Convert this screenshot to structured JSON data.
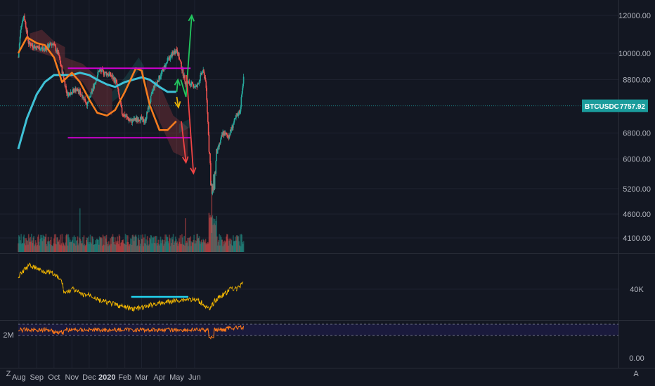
{
  "chart_data": {
    "type": "candlestick",
    "symbol": "BTCUSDC",
    "last_price": "7757.92",
    "price_axis_labels": [
      "12000.00",
      "10000.00",
      "8800.00",
      "6800.00",
      "6000.00",
      "5200.00",
      "4600.00",
      "4100.00"
    ],
    "price_axis_values": [
      12000,
      10000,
      8800,
      6800,
      6000,
      5200,
      4600,
      4100
    ],
    "price_scale": "log",
    "obv_axis_label": "40K",
    "oscillator_axis_labels": [
      "2M",
      "0.00"
    ],
    "time_axis_labels": [
      "Aug",
      "Sep",
      "Oct",
      "Nov",
      "Dec",
      "2020",
      "Feb",
      "Mar",
      "Apr",
      "May",
      "Jun"
    ],
    "time_axis_bold": [
      "2020"
    ],
    "corner_labels": [
      "Z",
      "A"
    ],
    "ma_fast_path": [
      [
        "2019-07-31",
        10000
      ],
      [
        "2019-08-15",
        10800
      ],
      [
        "2019-09-01",
        10500
      ],
      [
        "2019-09-15",
        10400
      ],
      [
        "2019-10-01",
        9800
      ],
      [
        "2019-10-15",
        8700
      ],
      [
        "2019-11-01",
        9100
      ],
      [
        "2019-11-15",
        8700
      ],
      [
        "2019-12-01",
        8000
      ],
      [
        "2019-12-15",
        7500
      ],
      [
        "2020-01-01",
        7400
      ],
      [
        "2020-01-15",
        7600
      ],
      [
        "2020-02-01",
        8300
      ],
      [
        "2020-02-20",
        9300
      ],
      [
        "2020-03-01",
        9200
      ],
      [
        "2020-03-15",
        7800
      ],
      [
        "2020-04-01",
        6900
      ],
      [
        "2020-04-15",
        6900
      ],
      [
        "2020-04-30",
        7200
      ]
    ],
    "ma_slow_path": [
      [
        "2019-07-31",
        6300
      ],
      [
        "2019-08-15",
        7300
      ],
      [
        "2019-09-01",
        8200
      ],
      [
        "2019-09-15",
        8700
      ],
      [
        "2019-10-01",
        9000
      ],
      [
        "2019-10-15",
        9000
      ],
      [
        "2019-11-01",
        9000
      ],
      [
        "2019-11-15",
        9100
      ],
      [
        "2019-12-01",
        9000
      ],
      [
        "2019-12-15",
        8800
      ],
      [
        "2020-01-01",
        8600
      ],
      [
        "2020-01-15",
        8500
      ],
      [
        "2020-02-01",
        8700
      ],
      [
        "2020-02-15",
        8800
      ],
      [
        "2020-03-01",
        8900
      ],
      [
        "2020-03-15",
        8800
      ],
      [
        "2020-04-01",
        8500
      ],
      [
        "2020-04-15",
        8300
      ],
      [
        "2020-04-30",
        8300
      ]
    ],
    "support_level": 6650,
    "resistance_level": 9300,
    "obv_support_level": 40000,
    "scenario_arrows": [
      {
        "color": "#22c55e",
        "path": [
          [
            "2020-05-01",
            8300
          ],
          [
            "2020-05-03",
            8800
          ]
        ]
      },
      {
        "color": "#22c55e",
        "path": [
          [
            "2020-05-08",
            8800
          ],
          [
            "2020-05-17",
            8100
          ],
          [
            "2020-05-27",
            12000
          ]
        ]
      },
      {
        "color": "#eab308",
        "path": [
          [
            "2020-05-01",
            8100
          ],
          [
            "2020-05-04",
            7700
          ]
        ]
      },
      {
        "color": "#ef4444",
        "path": [
          [
            "2020-05-09",
            7200
          ],
          [
            "2020-05-17",
            5900
          ]
        ]
      },
      {
        "color": "#ef4444",
        "path": [
          [
            "2020-05-18",
            9000
          ],
          [
            "2020-05-30",
            5600
          ]
        ]
      }
    ]
  },
  "colors": {
    "background": "#131722",
    "grid": "#1e2230",
    "up": "#26a69a",
    "down": "#ef5350",
    "ma_fast": "#f57c1f",
    "ma_slow": "#3fc1d6",
    "support_resistance": "#d000d0",
    "obv_line": "#f5b800",
    "obv_support": "#22d3ee",
    "oscillator_line": "#ff7a1a",
    "oscillator_band": "#1a1a3c",
    "last_price_tag": "#1b9c9c",
    "cloud_up": "rgba(38,166,154,0.18)",
    "cloud_down": "rgba(239,83,80,0.22)"
  }
}
